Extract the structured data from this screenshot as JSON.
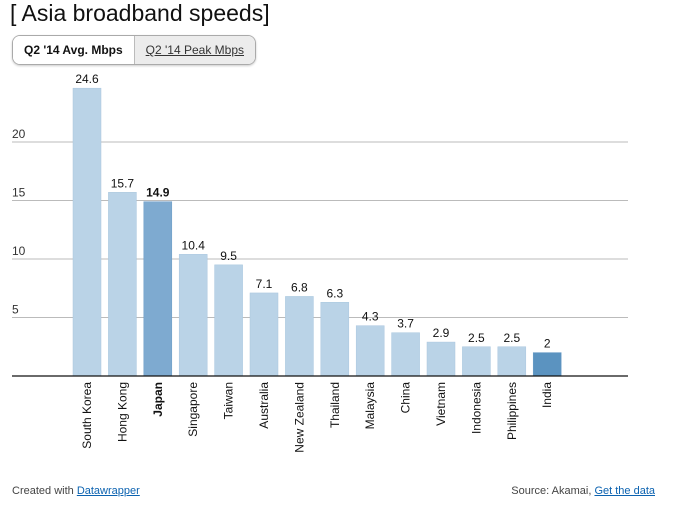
{
  "title": "[ Asia broadband speeds]",
  "tabs": [
    {
      "label": "Q2 '14 Avg. Mbps",
      "active": true
    },
    {
      "label": "Q2 '14 Peak Mbps",
      "active": false
    }
  ],
  "chart_data": {
    "type": "bar",
    "categories": [
      "South Korea",
      "Hong Kong",
      "Japan",
      "Singapore",
      "Taiwan",
      "Australia",
      "New Zealand",
      "Thailand",
      "Malaysia",
      "China",
      "Vietnam",
      "Indonesia",
      "Philippines",
      "India"
    ],
    "values": [
      24.6,
      15.7,
      14.9,
      10.4,
      9.5,
      7.1,
      6.8,
      6.3,
      4.3,
      3.7,
      2.9,
      2.5,
      2.5,
      2
    ],
    "value_labels": [
      "24.6",
      "15.7",
      "14.9",
      "10.4",
      "9.5",
      "7.1",
      "6.8",
      "6.3",
      "4.3",
      "3.7",
      "2.9",
      "2.5",
      "2.5",
      "2"
    ],
    "highlighted": {
      "Japan": "#7eaad0",
      "India": "#5b93c0"
    },
    "bar_color": "#bad3e7",
    "yticks": [
      5,
      10,
      15,
      20
    ],
    "ylim": [
      0,
      25
    ],
    "grid": true
  },
  "footer": {
    "created_with": "Created with ",
    "datawrapper": "Datawrapper",
    "source": "Source: Akamai, ",
    "get_data": "Get the data"
  }
}
